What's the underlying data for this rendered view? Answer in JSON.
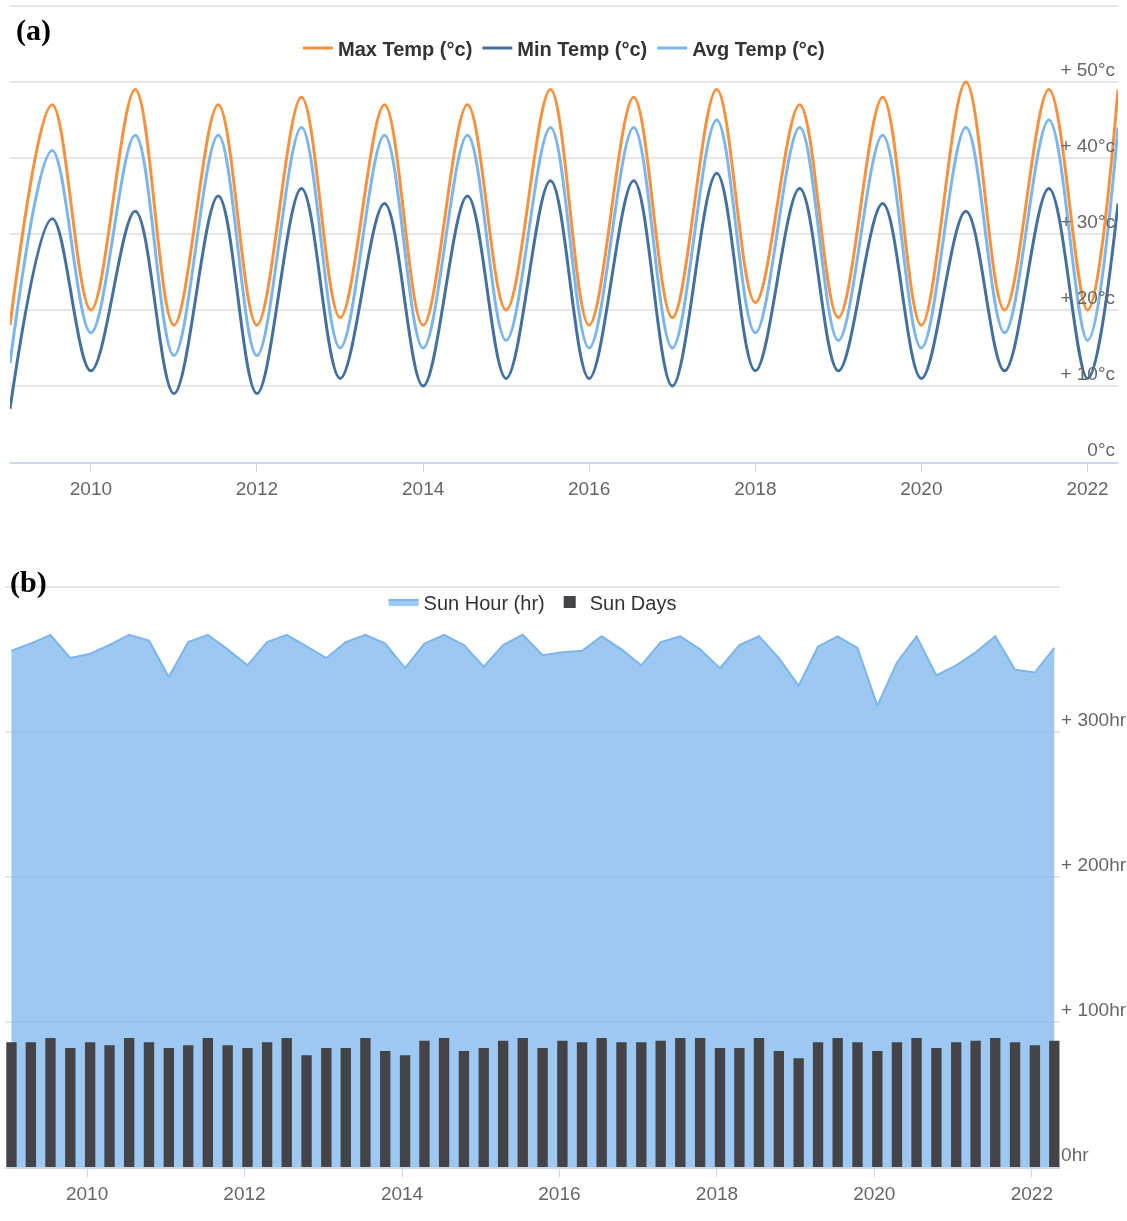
{
  "chart_data": [
    {
      "type": "line",
      "annotations": [
        "(a)"
      ],
      "legend": "top",
      "grid": "y",
      "marker": "none",
      "line_style": "solid",
      "x": [
        "2009-01-10",
        "2009-07-15",
        "2010-01-01",
        "2010-07-15",
        "2011-01-01",
        "2011-07-15",
        "2012-01-01",
        "2012-07-15",
        "2013-01-01",
        "2013-07-15",
        "2014-01-01",
        "2014-07-15",
        "2015-01-01",
        "2015-07-15",
        "2016-01-01",
        "2016-07-15",
        "2017-01-01",
        "2017-07-15",
        "2018-01-01",
        "2018-07-15",
        "2019-01-01",
        "2019-07-15",
        "2020-01-01",
        "2020-07-15",
        "2021-01-01",
        "2021-07-15",
        "2022-01-01",
        "2022-05-15"
      ],
      "series": [
        {
          "name": "Max Temp (°c)",
          "color": "#f7913d",
          "values": [
            18,
            47,
            20,
            49,
            18,
            47,
            18,
            48,
            19,
            47,
            18,
            47,
            20,
            49,
            18,
            48,
            19,
            49,
            21,
            47,
            19,
            48,
            18,
            50,
            20,
            49,
            20,
            49
          ]
        },
        {
          "name": "Min Temp (°c)",
          "color": "#44709d",
          "values": [
            7,
            32,
            12,
            33,
            9,
            35,
            9,
            36,
            11,
            34,
            10,
            35,
            11,
            37,
            11,
            37,
            10,
            38,
            12,
            36,
            12,
            34,
            11,
            33,
            12,
            36,
            11,
            34
          ]
        },
        {
          "name": "Avg Temp (°c)",
          "color": "#7cb5ec",
          "values": [
            13,
            41,
            17,
            43,
            14,
            43,
            14,
            44,
            15,
            43,
            15,
            43,
            16,
            44,
            15,
            44,
            15,
            45,
            17,
            44,
            16,
            43,
            15,
            44,
            17,
            45,
            16,
            44
          ]
        }
      ],
      "xlim": [
        "2009-01-10",
        "2022-05-15"
      ],
      "xticks": [
        {
          "value": "2010-01-01",
          "label": "2010"
        },
        {
          "value": "2012-01-01",
          "label": "2012"
        },
        {
          "value": "2014-01-01",
          "label": "2014"
        },
        {
          "value": "2016-01-01",
          "label": "2016"
        },
        {
          "value": "2018-01-01",
          "label": "2018"
        },
        {
          "value": "2020-01-01",
          "label": "2020"
        },
        {
          "value": "2022-01-01",
          "label": "2022"
        }
      ],
      "ylim": [
        0,
        60
      ],
      "yticks": [
        {
          "value": 0,
          "label": "0°c"
        },
        {
          "value": 10,
          "label": "+ 10°c"
        },
        {
          "value": 20,
          "label": "+ 20°c"
        },
        {
          "value": 30,
          "label": "+ 30°c"
        },
        {
          "value": 40,
          "label": "+ 40°c"
        },
        {
          "value": 50,
          "label": "+ 50°c"
        }
      ]
    },
    {
      "type": "area",
      "annotations": [
        "(b)"
      ],
      "legend": "top",
      "grid": "y",
      "marker": "none",
      "x": [
        "2009-01-15",
        "2009-04-15",
        "2009-07-15",
        "2009-10-15",
        "2010-01-15",
        "2010-04-15",
        "2010-07-15",
        "2010-10-15",
        "2011-01-15",
        "2011-04-15",
        "2011-07-15",
        "2011-10-15",
        "2012-01-15",
        "2012-04-15",
        "2012-07-15",
        "2012-10-15",
        "2013-01-15",
        "2013-04-15",
        "2013-07-15",
        "2013-10-15",
        "2014-01-15",
        "2014-04-15",
        "2014-07-15",
        "2014-10-15",
        "2015-01-15",
        "2015-04-15",
        "2015-07-15",
        "2015-10-15",
        "2016-01-15",
        "2016-04-15",
        "2016-07-15",
        "2016-10-15",
        "2017-01-15",
        "2017-04-15",
        "2017-07-15",
        "2017-10-15",
        "2018-01-15",
        "2018-04-15",
        "2018-07-15",
        "2018-10-15",
        "2019-01-15",
        "2019-04-15",
        "2019-07-15",
        "2019-10-15",
        "2020-01-15",
        "2020-04-15",
        "2020-07-15",
        "2020-10-15",
        "2021-01-15",
        "2021-04-15",
        "2021-07-15",
        "2021-10-15",
        "2022-01-15",
        "2022-04-15"
      ],
      "series": [
        {
          "name": "Sun Hour (hr)",
          "type": "area",
          "color": "#7cb5ec",
          "values": [
            356,
            361,
            367,
            351,
            354,
            360,
            367,
            363,
            338,
            362,
            367,
            357,
            346,
            362,
            367,
            359,
            351,
            362,
            367,
            361,
            344,
            361,
            367,
            360,
            345,
            360,
            367,
            353,
            355,
            356,
            366,
            357,
            346,
            362,
            366,
            357,
            344,
            360,
            366,
            351,
            332,
            359,
            366,
            358,
            318,
            348,
            366,
            339,
            346,
            355,
            366,
            343,
            341,
            358
          ]
        },
        {
          "name": "Sun Days",
          "type": "bar",
          "color": "#434348",
          "values": [
            86,
            86,
            89,
            82,
            86,
            84,
            89,
            86,
            82,
            84,
            89,
            84,
            82,
            86,
            89,
            77,
            82,
            82,
            89,
            80,
            77,
            87,
            89,
            80,
            82,
            87,
            89,
            82,
            87,
            86,
            89,
            86,
            86,
            87,
            89,
            89,
            82,
            82,
            89,
            80,
            75,
            86,
            89,
            86,
            80,
            86,
            89,
            82,
            86,
            87,
            89,
            86,
            84,
            87
          ]
        }
      ],
      "xlim": [
        "2008-12-16",
        "2022-05-12"
      ],
      "xticks": [
        {
          "value": "2010-01-01",
          "label": "2010"
        },
        {
          "value": "2012-01-01",
          "label": "2012"
        },
        {
          "value": "2014-01-01",
          "label": "2014"
        },
        {
          "value": "2016-01-01",
          "label": "2016"
        },
        {
          "value": "2018-01-01",
          "label": "2018"
        },
        {
          "value": "2020-01-01",
          "label": "2020"
        },
        {
          "value": "2022-01-01",
          "label": "2022"
        }
      ],
      "ylim": [
        0,
        400
      ],
      "yticks": [
        {
          "value": 0,
          "label": "0hr"
        },
        {
          "value": 100,
          "label": "+ 100hr"
        },
        {
          "value": 200,
          "label": "+ 200hr"
        },
        {
          "value": 300,
          "label": "+ 300hr"
        }
      ]
    }
  ]
}
